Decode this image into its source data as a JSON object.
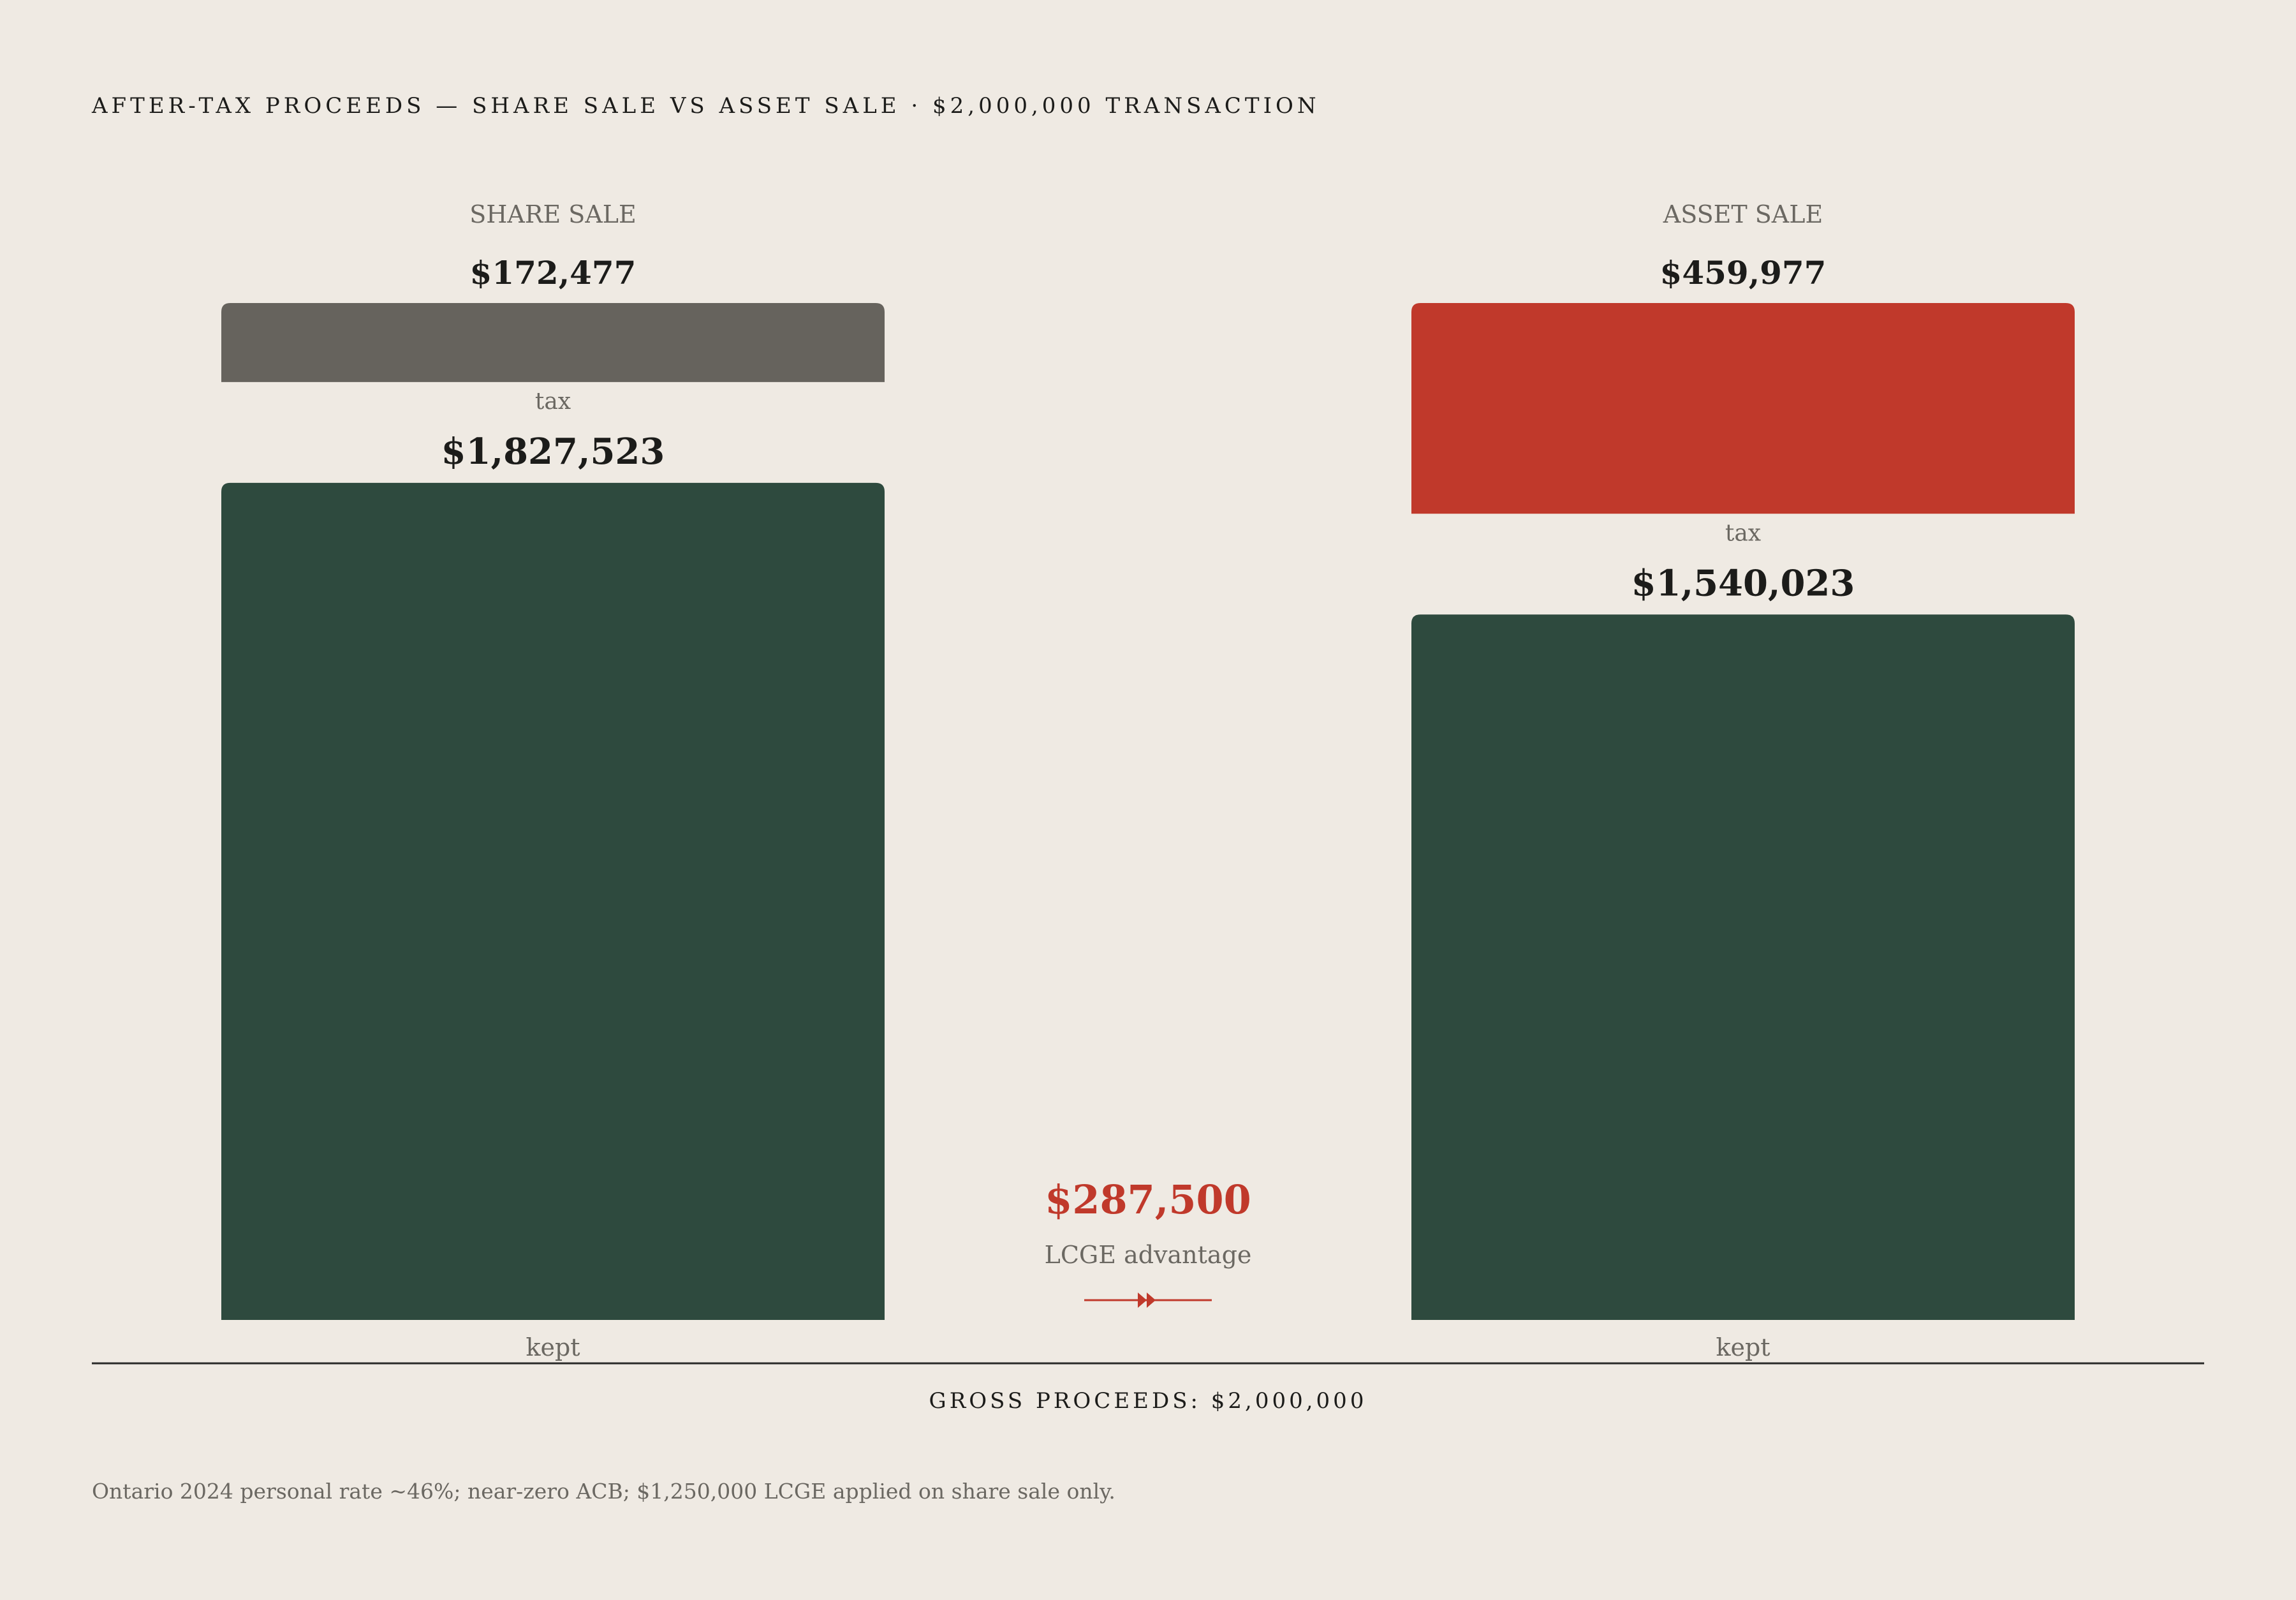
{
  "header": {
    "title": "AFTER-TAX PROCEEDS — SHARE SALE VS ASSET SALE · $2,000,000 TRANSACTION"
  },
  "colors": {
    "background": "#efeae3",
    "kept": "#2e4a3e",
    "share_tax": "#66635d",
    "asset_tax": "#c0392b",
    "accent": "#c0392b",
    "muted_text": "#6b6862",
    "text": "#1c1c1a"
  },
  "chart_data": {
    "type": "bar",
    "stacked": true,
    "total": 2000000,
    "categories": [
      "SHARE SALE",
      "ASSET SALE"
    ],
    "series": [
      {
        "name": "kept",
        "values": [
          1827523,
          1540023
        ]
      },
      {
        "name": "tax",
        "values": [
          172477,
          459977
        ]
      }
    ],
    "value_labels": {
      "kept": [
        "$1,827,523",
        "$1,540,023"
      ],
      "tax": [
        "$172,477",
        "$459,977"
      ]
    },
    "segment_labels": {
      "kept": "kept",
      "tax": "tax"
    },
    "annotation": {
      "value": 287500,
      "value_label": "$287,500",
      "label": "LCGE advantage"
    },
    "baseline_label": "GROSS PROCEEDS: $2,000,000"
  },
  "footnote": "Ontario 2024 personal rate ~46%; near-zero ACB; $1,250,000 LCGE applied on share sale only."
}
